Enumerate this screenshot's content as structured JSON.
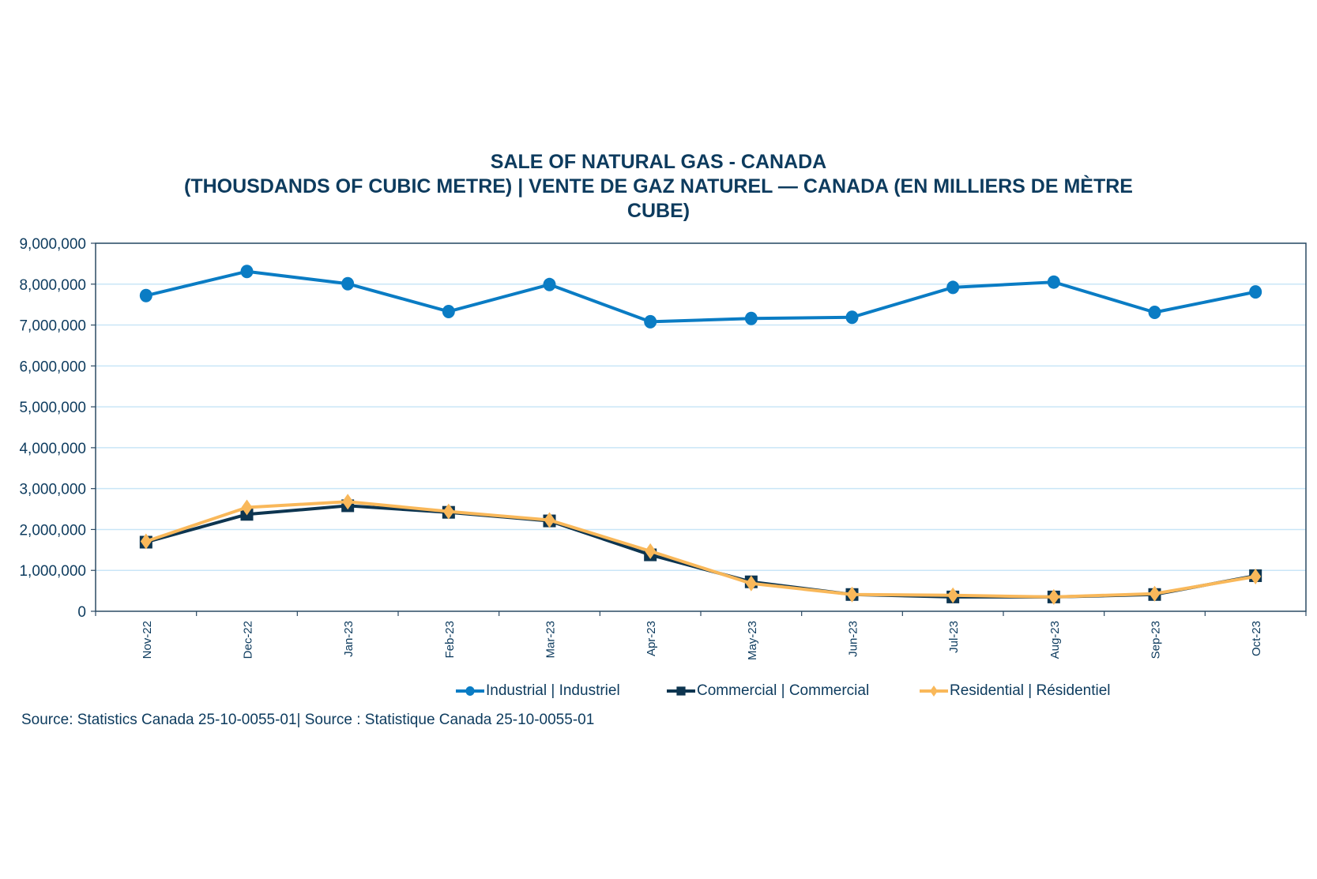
{
  "chart_data": {
    "type": "line",
    "title_lines": [
      "SALE OF NATURAL GAS - CANADA",
      "(THOUSDANDS OF CUBIC METRE) | VENTE DE GAZ NATUREL — CANADA (EN MILLIERS DE MÈTRE",
      "CUBE)"
    ],
    "categories": [
      "Nov-22",
      "Dec-22",
      "Jan-23",
      "Feb-23",
      "Mar-23",
      "Apr-23",
      "May-23",
      "Jun-23",
      "Jul-23",
      "Aug-23",
      "Sep-23",
      "Oct-23"
    ],
    "ylim": [
      0,
      9000000
    ],
    "yticks": [
      "0",
      "1,000,000",
      "2,000,000",
      "3,000,000",
      "4,000,000",
      "5,000,000",
      "6,000,000",
      "7,000,000",
      "8,000,000",
      "9,000,000"
    ],
    "grid": true,
    "legend_position": "bottom",
    "series": [
      {
        "name": "Industrial | Industriel",
        "color": "#0a7cc4",
        "marker": "circle",
        "values": [
          7720000,
          8310000,
          8010000,
          7330000,
          7990000,
          7080000,
          7160000,
          7190000,
          7920000,
          8050000,
          7310000,
          7810000
        ]
      },
      {
        "name": "Commercial | Commercial",
        "color": "#0d3550",
        "marker": "square",
        "values": [
          1690000,
          2370000,
          2580000,
          2420000,
          2210000,
          1380000,
          720000,
          410000,
          350000,
          350000,
          410000,
          870000
        ]
      },
      {
        "name": "Residential | Résidentiel",
        "color": "#f9b85a",
        "marker": "diamond",
        "values": [
          1710000,
          2540000,
          2680000,
          2440000,
          2230000,
          1470000,
          680000,
          410000,
          390000,
          350000,
          430000,
          850000
        ]
      }
    ]
  },
  "source": "Source: Statistics Canada 25-10-0055-01| Source : Statistique Canada 25-10-0055-01"
}
